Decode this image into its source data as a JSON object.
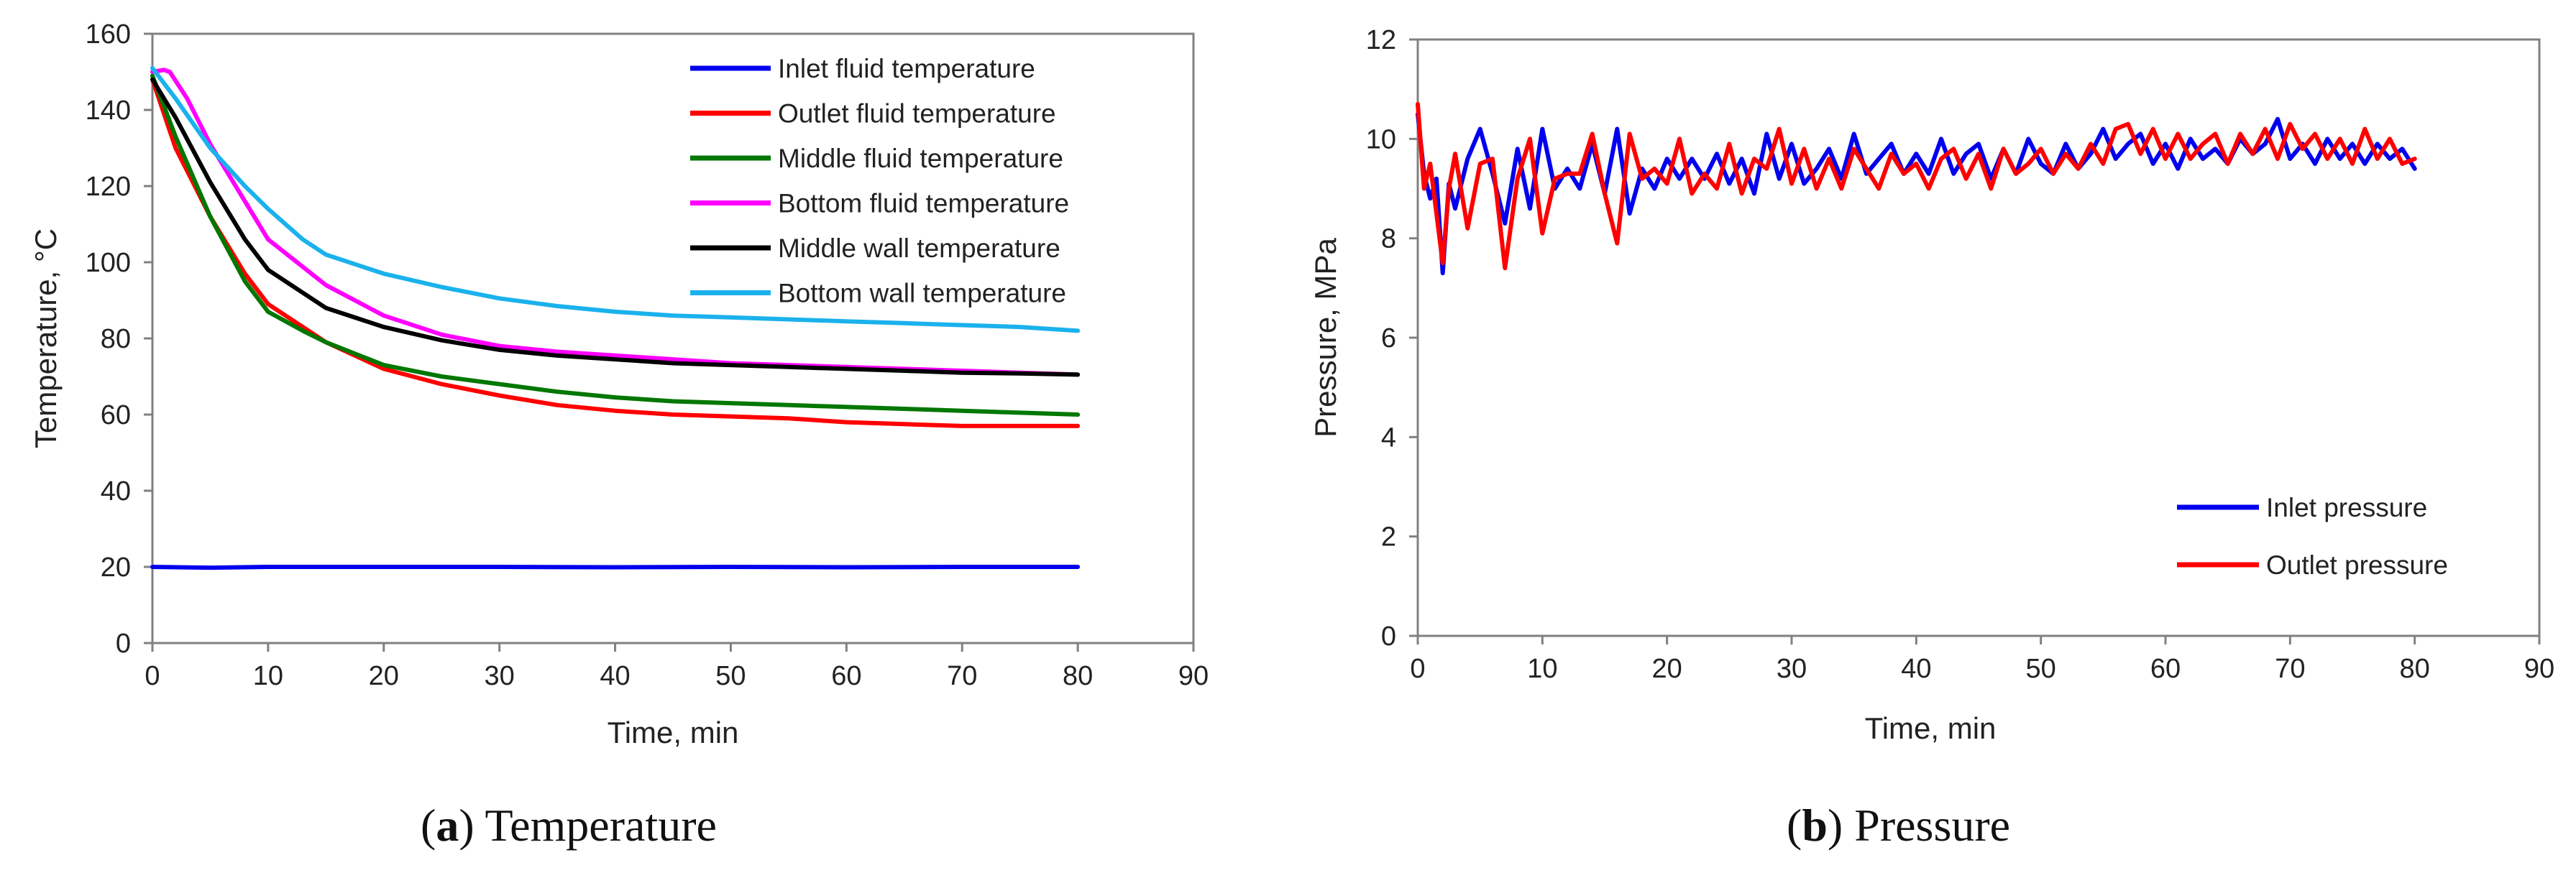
{
  "chart_data": [
    {
      "type": "line",
      "id": "a",
      "caption_letter": "a",
      "caption_text": "Temperature",
      "xlabel": "Time,  min",
      "ylabel": "Temperature,  °C",
      "xlim": [
        0,
        90
      ],
      "ylim": [
        0,
        160
      ],
      "xticks": [
        "0",
        "10",
        "20",
        "30",
        "40",
        "50",
        "60",
        "70",
        "80",
        "90"
      ],
      "yticks": [
        "0",
        "20",
        "40",
        "60",
        "80",
        "100",
        "120",
        "140",
        "160"
      ],
      "legend_position": "top-right",
      "series": [
        {
          "name": "Inlet fluid temperature",
          "color": "#0000ee",
          "x": [
            0,
            5,
            10,
            20,
            30,
            40,
            50,
            60,
            70,
            80
          ],
          "y": [
            20,
            19.8,
            20,
            20,
            20,
            19.9,
            20,
            19.9,
            20,
            20
          ]
        },
        {
          "name": "Outlet fluid temperature",
          "color": "#ff0000",
          "x": [
            0,
            2,
            5,
            8,
            10,
            15,
            20,
            25,
            30,
            35,
            40,
            45,
            50,
            55,
            60,
            65,
            70,
            75,
            80
          ],
          "y": [
            148,
            130,
            112,
            97,
            89,
            79,
            72,
            68,
            65,
            62.5,
            61,
            60,
            59.5,
            59,
            58,
            57.5,
            57,
            57,
            57
          ]
        },
        {
          "name": "Middle fluid temperature",
          "color": "#007700",
          "x": [
            0,
            2,
            5,
            8,
            10,
            13,
            15,
            20,
            25,
            30,
            35,
            40,
            45,
            50,
            55,
            60,
            65,
            70,
            75,
            80
          ],
          "y": [
            149,
            133,
            112,
            95,
            87,
            82,
            79,
            73,
            70,
            68,
            66,
            64.5,
            63.5,
            63,
            62.5,
            62,
            61.5,
            61,
            60.5,
            60
          ]
        },
        {
          "name": "Bottom fluid temperature",
          "color": "#ff00ff",
          "x": [
            0,
            1,
            1.5,
            3,
            5,
            8,
            10,
            15,
            20,
            25,
            30,
            35,
            40,
            45,
            50,
            55,
            60,
            65,
            70,
            75,
            80
          ],
          "y": [
            150,
            150.5,
            150,
            143,
            131,
            116,
            106,
            94,
            86,
            81,
            78,
            76.5,
            75.5,
            74.5,
            73.5,
            73,
            72.5,
            72,
            71.5,
            71,
            70.5
          ]
        },
        {
          "name": "Middle wall temperature",
          "color": "#000000",
          "x": [
            0,
            2,
            5,
            8,
            10,
            15,
            20,
            25,
            30,
            35,
            40,
            45,
            50,
            55,
            60,
            65,
            70,
            75,
            80
          ],
          "y": [
            148,
            138,
            121,
            106,
            98,
            88,
            83,
            79.5,
            77,
            75.5,
            74.5,
            73.5,
            73,
            72.5,
            72,
            71.5,
            71,
            70.8,
            70.5
          ]
        },
        {
          "name": "Bottom wall temperature",
          "color": "#1ab2ec",
          "x": [
            0,
            2,
            5,
            8,
            10,
            13,
            15,
            20,
            25,
            30,
            35,
            40,
            45,
            50,
            55,
            60,
            65,
            70,
            75,
            80
          ],
          "y": [
            151,
            143,
            130,
            120,
            114,
            106,
            102,
            97,
            93.5,
            90.5,
            88.5,
            87,
            86,
            85.5,
            85,
            84.5,
            84,
            83.5,
            83,
            82
          ]
        }
      ]
    },
    {
      "type": "line",
      "id": "b",
      "caption_letter": "b",
      "caption_text": "Pressure",
      "xlabel": "Time,  min",
      "ylabel": "Pressure,  MPa",
      "xlim": [
        0,
        90
      ],
      "ylim": [
        0,
        12
      ],
      "xticks": [
        "0",
        "10",
        "20",
        "30",
        "40",
        "50",
        "60",
        "70",
        "80",
        "90"
      ],
      "yticks": [
        "0",
        "2",
        "4",
        "6",
        "8",
        "10",
        "12"
      ],
      "legend_position": "bottom-right",
      "series": [
        {
          "name": "Inlet pressure",
          "color": "#0000ee",
          "x": [
            0,
            0.5,
            1,
            1.5,
            2,
            2.5,
            3,
            4,
            5,
            6,
            7,
            8,
            9,
            10,
            11,
            12,
            13,
            14,
            15,
            16,
            17,
            18,
            19,
            20,
            21,
            22,
            23,
            24,
            25,
            26,
            27,
            28,
            29,
            30,
            31,
            32,
            33,
            34,
            35,
            36,
            37,
            38,
            39,
            40,
            41,
            42,
            43,
            44,
            45,
            46,
            47,
            48,
            49,
            50,
            51,
            52,
            53,
            54,
            55,
            56,
            57,
            58,
            59,
            60,
            61,
            62,
            63,
            64,
            65,
            66,
            67,
            68,
            69,
            70,
            71,
            72,
            73,
            74,
            75,
            76,
            77,
            78,
            79,
            80
          ],
          "y": [
            10.5,
            9.3,
            8.8,
            9.2,
            7.3,
            9.1,
            8.6,
            9.6,
            10.2,
            9.3,
            8.3,
            9.8,
            8.6,
            10.2,
            9.0,
            9.4,
            9.0,
            9.9,
            8.9,
            10.2,
            8.5,
            9.4,
            9.0,
            9.6,
            9.2,
            9.6,
            9.2,
            9.7,
            9.1,
            9.6,
            8.9,
            10.1,
            9.2,
            9.9,
            9.1,
            9.4,
            9.8,
            9.2,
            10.1,
            9.3,
            9.6,
            9.9,
            9.3,
            9.7,
            9.3,
            10.0,
            9.3,
            9.7,
            9.9,
            9.2,
            9.8,
            9.3,
            10.0,
            9.5,
            9.3,
            9.9,
            9.4,
            9.7,
            10.2,
            9.6,
            9.9,
            10.1,
            9.5,
            9.9,
            9.4,
            10.0,
            9.6,
            9.8,
            9.5,
            10.0,
            9.7,
            9.9,
            10.4,
            9.6,
            9.9,
            9.5,
            10.0,
            9.6,
            9.9,
            9.5,
            9.9,
            9.6,
            9.8,
            9.4
          ]
        },
        {
          "name": "Outlet pressure",
          "color": "#ff0000",
          "x": [
            0,
            0.5,
            1,
            1.5,
            2,
            2.5,
            3,
            4,
            5,
            6,
            7,
            8,
            9,
            10,
            11,
            12,
            13,
            14,
            15,
            16,
            17,
            18,
            19,
            20,
            21,
            22,
            23,
            24,
            25,
            26,
            27,
            28,
            29,
            30,
            31,
            32,
            33,
            34,
            35,
            36,
            37,
            38,
            39,
            40,
            41,
            42,
            43,
            44,
            45,
            46,
            47,
            48,
            49,
            50,
            51,
            52,
            53,
            54,
            55,
            56,
            57,
            58,
            59,
            60,
            61,
            62,
            63,
            64,
            65,
            66,
            67,
            68,
            69,
            70,
            71,
            72,
            73,
            74,
            75,
            76,
            77,
            78,
            79,
            80
          ],
          "y": [
            10.7,
            9.0,
            9.5,
            8.5,
            7.5,
            9.0,
            9.7,
            8.2,
            9.5,
            9.6,
            7.4,
            9.2,
            10.0,
            8.1,
            9.2,
            9.3,
            9.3,
            10.1,
            8.9,
            7.9,
            10.1,
            9.2,
            9.4,
            9.1,
            10.0,
            8.9,
            9.3,
            9.0,
            9.9,
            8.9,
            9.6,
            9.4,
            10.2,
            9.1,
            9.8,
            9.0,
            9.6,
            9.0,
            9.8,
            9.4,
            9.0,
            9.7,
            9.3,
            9.5,
            9.0,
            9.6,
            9.8,
            9.2,
            9.7,
            9.0,
            9.8,
            9.3,
            9.5,
            9.8,
            9.3,
            9.7,
            9.4,
            9.9,
            9.5,
            10.2,
            10.3,
            9.7,
            10.2,
            9.6,
            10.1,
            9.6,
            9.9,
            10.1,
            9.5,
            10.1,
            9.7,
            10.2,
            9.6,
            10.3,
            9.8,
            10.1,
            9.6,
            10.0,
            9.5,
            10.2,
            9.6,
            10.0,
            9.5,
            9.6
          ]
        }
      ]
    }
  ]
}
